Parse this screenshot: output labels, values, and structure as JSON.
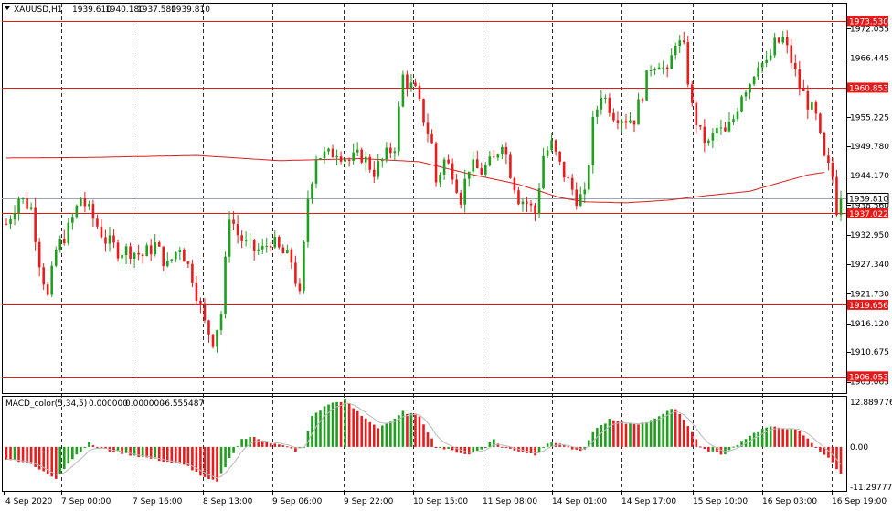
{
  "header": {
    "symbol": "XAUUSD,H1",
    "open": "1939.610",
    "high": "1940.180",
    "low": "1937.580",
    "close": "1939.810"
  },
  "colors": {
    "bull": "#1f9e1f",
    "bear": "#e81c1c",
    "level": "#e41b1b",
    "ma": "#d91f1f",
    "grid": "#2b2b2b",
    "price_line": "#9aa7b8",
    "macd_signal": "#b9b9b9"
  },
  "chart_data": [
    {
      "type": "candlestick",
      "symbol": "XAUUSD",
      "timeframe": "H1",
      "ylim": [
        1902.9,
        1976.8
      ],
      "y_ticks": [
        "1972.055",
        "1966.445",
        "1960.835",
        "1955.225",
        "1949.780",
        "1944.170",
        "1938.560",
        "1932.950",
        "1927.340",
        "1921.730",
        "1916.120",
        "1910.675",
        "1905.065"
      ],
      "x_ticks": [
        "4 Sep 2020",
        "7 Sep 00:00",
        "7 Sep 16:00",
        "8 Sep 13:00",
        "9 Sep 06:00",
        "9 Sep 22:00",
        "10 Sep 15:00",
        "11 Sep 08:00",
        "14 Sep 01:00",
        "14 Sep 17:00",
        "15 Sep 10:00",
        "16 Sep 03:00",
        "16 Sep 19:00"
      ],
      "current_price": "1939.810",
      "levels": [
        {
          "price": 1973.53,
          "label": "1973.530"
        },
        {
          "price": 1960.853,
          "label": "1960.853"
        },
        {
          "price": 1937.022,
          "label": "1937.022"
        },
        {
          "price": 1919.656,
          "label": "1919.656"
        },
        {
          "price": 1906.053,
          "label": "1906.053"
        }
      ],
      "anchors": [
        [
          0,
          1935
        ],
        [
          3,
          1940
        ],
        [
          6,
          1938
        ],
        [
          8,
          1928
        ],
        [
          10,
          1921
        ],
        [
          12,
          1930
        ],
        [
          15,
          1934
        ],
        [
          18,
          1940
        ],
        [
          21,
          1936
        ],
        [
          24,
          1932
        ],
        [
          27,
          1930
        ],
        [
          30,
          1930
        ],
        [
          33,
          1929
        ],
        [
          36,
          1931
        ],
        [
          39,
          1927
        ],
        [
          42,
          1931
        ],
        [
          45,
          1925
        ],
        [
          48,
          1916
        ],
        [
          50,
          1913
        ],
        [
          52,
          1918
        ],
        [
          54,
          1937
        ],
        [
          56,
          1933
        ],
        [
          58,
          1931
        ],
        [
          60,
          1930
        ],
        [
          62,
          1930
        ],
        [
          64,
          1932
        ],
        [
          66,
          1930
        ],
        [
          69,
          1928
        ],
        [
          71,
          1921
        ],
        [
          73,
          1940
        ],
        [
          75,
          1948
        ],
        [
          78,
          1948
        ],
        [
          80,
          1949
        ],
        [
          83,
          1947
        ],
        [
          86,
          1948
        ],
        [
          89,
          1945
        ],
        [
          92,
          1948
        ],
        [
          94,
          1950
        ],
        [
          96,
          1963
        ],
        [
          99,
          1960
        ],
        [
          101,
          1955
        ],
        [
          103,
          1950
        ],
        [
          104,
          1943
        ],
        [
          106,
          1947
        ],
        [
          108,
          1945
        ],
        [
          110,
          1940
        ],
        [
          112,
          1946
        ],
        [
          115,
          1945
        ],
        [
          118,
          1947
        ],
        [
          120,
          1951
        ],
        [
          122,
          1945
        ],
        [
          124,
          1940
        ],
        [
          126,
          1939
        ],
        [
          128,
          1937
        ],
        [
          130,
          1948
        ],
        [
          132,
          1950
        ],
        [
          134,
          1946
        ],
        [
          136,
          1943
        ],
        [
          138,
          1940
        ],
        [
          140,
          1940
        ],
        [
          142,
          1954
        ],
        [
          144,
          1960
        ],
        [
          147,
          1956
        ],
        [
          150,
          1955
        ],
        [
          152,
          1955
        ],
        [
          154,
          1960
        ],
        [
          156,
          1965
        ],
        [
          158,
          1966
        ],
        [
          160,
          1963
        ],
        [
          162,
          1970
        ],
        [
          164,
          1968
        ],
        [
          166,
          1957
        ],
        [
          168,
          1952
        ],
        [
          170,
          1950
        ],
        [
          172,
          1953
        ],
        [
          174,
          1952
        ],
        [
          176,
          1955
        ],
        [
          178,
          1960
        ],
        [
          180,
          1962
        ],
        [
          182,
          1966
        ],
        [
          184,
          1965
        ],
        [
          186,
          1969
        ],
        [
          188,
          1970
        ],
        [
          190,
          1966
        ],
        [
          192,
          1961
        ],
        [
          194,
          1958
        ],
        [
          196,
          1955
        ],
        [
          198,
          1947
        ],
        [
          200,
          1944
        ],
        [
          201,
          1938
        ],
        [
          202,
          1939.81
        ]
      ],
      "moving_average": [
        [
          0,
          1947.5
        ],
        [
          20,
          1947.6
        ],
        [
          46,
          1948.0
        ],
        [
          66,
          1947.0
        ],
        [
          86,
          1947.4
        ],
        [
          100,
          1946.8
        ],
        [
          112,
          1944.5
        ],
        [
          124,
          1942.5
        ],
        [
          134,
          1940.0
        ],
        [
          140,
          1939.2
        ],
        [
          150,
          1939.0
        ],
        [
          160,
          1939.5
        ],
        [
          170,
          1940.4
        ],
        [
          180,
          1941.2
        ],
        [
          188,
          1943.0
        ],
        [
          194,
          1944.3
        ],
        [
          198,
          1944.8
        ]
      ]
    },
    {
      "type": "histogram",
      "indicator": "MACD_color(5,34,5)",
      "values_text": [
        "0.000000",
        "0.000000",
        "-6.555487"
      ],
      "ylim": [
        -11.297779,
        12.889776
      ],
      "y_ticks": [
        "12.889776",
        "0.00",
        "-11.297779"
      ],
      "series": [
        {
          "name": "MACD",
          "anchors": [
            [
              0,
              -3
            ],
            [
              5,
              -4
            ],
            [
              10,
              -7
            ],
            [
              12,
              -8
            ],
            [
              16,
              -3
            ],
            [
              20,
              1
            ],
            [
              22,
              0
            ],
            [
              25,
              -1
            ],
            [
              30,
              -2
            ],
            [
              35,
              -3
            ],
            [
              40,
              -4
            ],
            [
              44,
              -5
            ],
            [
              48,
              -8
            ],
            [
              51,
              -9
            ],
            [
              54,
              -3
            ],
            [
              57,
              2
            ],
            [
              60,
              2.5
            ],
            [
              64,
              1
            ],
            [
              68,
              0
            ],
            [
              70,
              -1
            ],
            [
              72,
              0
            ],
            [
              74,
              8
            ],
            [
              78,
              11
            ],
            [
              82,
              12
            ],
            [
              86,
              8
            ],
            [
              90,
              5
            ],
            [
              94,
              7
            ],
            [
              96,
              9
            ],
            [
              100,
              8
            ],
            [
              104,
              0
            ],
            [
              108,
              -1
            ],
            [
              112,
              -2
            ],
            [
              116,
              0
            ],
            [
              118,
              2
            ],
            [
              120,
              0
            ],
            [
              124,
              -1
            ],
            [
              128,
              -2
            ],
            [
              131,
              1
            ],
            [
              134,
              1
            ],
            [
              138,
              -1
            ],
            [
              140,
              -1
            ],
            [
              142,
              4
            ],
            [
              146,
              7
            ],
            [
              150,
              6
            ],
            [
              154,
              6
            ],
            [
              158,
              8
            ],
            [
              162,
              10
            ],
            [
              166,
              4
            ],
            [
              168,
              0
            ],
            [
              170,
              -1
            ],
            [
              174,
              -2
            ],
            [
              176,
              0
            ],
            [
              180,
              3
            ],
            [
              184,
              5
            ],
            [
              188,
              5
            ],
            [
              192,
              4
            ],
            [
              194,
              2
            ],
            [
              196,
              0
            ],
            [
              198,
              -2
            ],
            [
              200,
              -4
            ],
            [
              202,
              -7
            ]
          ]
        }
      ]
    }
  ]
}
